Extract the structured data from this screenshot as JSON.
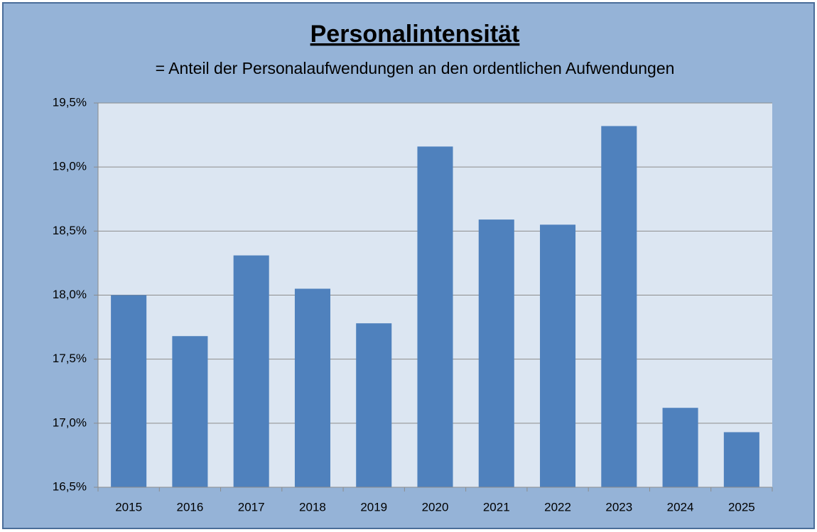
{
  "chart_data": {
    "type": "bar",
    "title": "Personalintensität",
    "subtitle": "= Anteil der Personalaufwendungen an den ordentlichen Aufwendungen",
    "categories": [
      "2015",
      "2016",
      "2017",
      "2018",
      "2019",
      "2020",
      "2021",
      "2022",
      "2023",
      "2024",
      "2025"
    ],
    "values": [
      18.0,
      17.68,
      18.31,
      18.05,
      17.78,
      19.16,
      18.59,
      18.55,
      19.32,
      17.12,
      16.93
    ],
    "color": "#4f81bd",
    "ylim": [
      16.5,
      19.5
    ],
    "yticks": [
      {
        "value": 16.5,
        "label": "16,5%"
      },
      {
        "value": 17.0,
        "label": "17,0%"
      },
      {
        "value": 17.5,
        "label": "17,5%"
      },
      {
        "value": 18.0,
        "label": "18,0%"
      },
      {
        "value": 18.5,
        "label": "18,5%"
      },
      {
        "value": 19.0,
        "label": "19,0%"
      },
      {
        "value": 19.5,
        "label": "19,5%"
      }
    ],
    "grid": true
  }
}
